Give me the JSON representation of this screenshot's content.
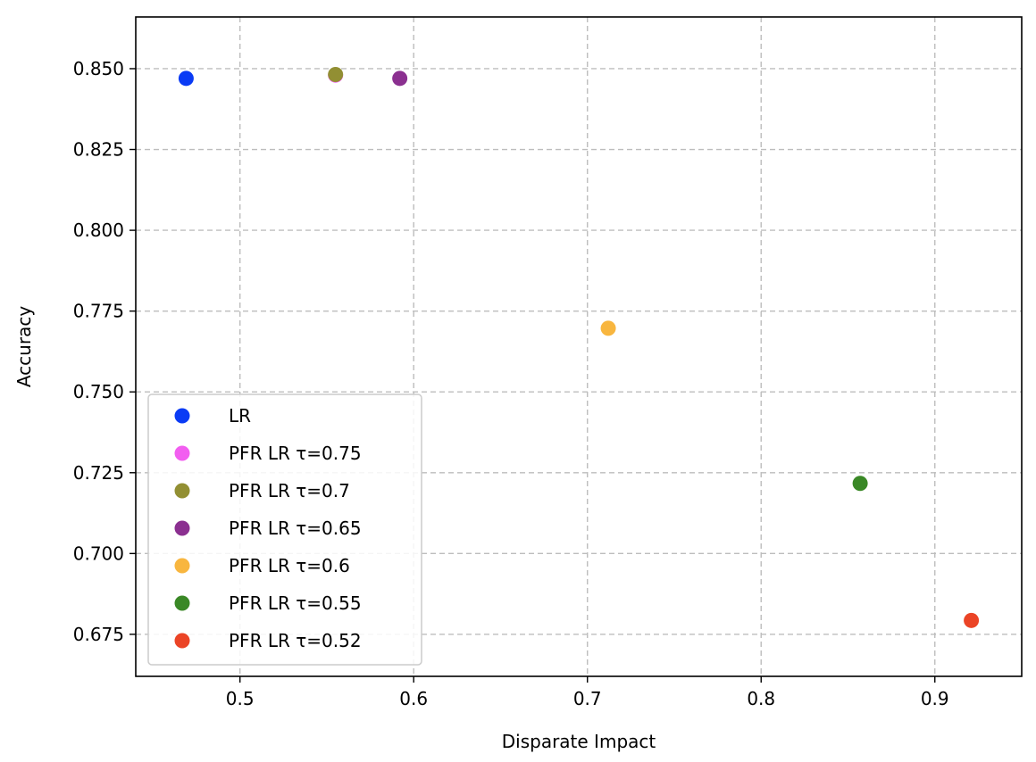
{
  "chart_data": {
    "type": "scatter",
    "xlabel": "Disparate Impact",
    "ylabel": "Accuracy",
    "xlim": [
      0.44,
      0.95
    ],
    "ylim": [
      0.662,
      0.866
    ],
    "xticks": [
      0.5,
      0.6,
      0.7,
      0.8,
      0.9
    ],
    "xtick_labels": [
      "0.5",
      "0.6",
      "0.7",
      "0.8",
      "0.9"
    ],
    "yticks": [
      0.675,
      0.7,
      0.725,
      0.75,
      0.775,
      0.8,
      0.825,
      0.85
    ],
    "ytick_labels": [
      "0.675",
      "0.700",
      "0.725",
      "0.750",
      "0.775",
      "0.800",
      "0.825",
      "0.850"
    ],
    "grid": true,
    "legend_position": "lower-left",
    "series": [
      {
        "name": "LR",
        "color": "#0a3bf5",
        "x": [
          0.469
        ],
        "y": [
          0.847
        ]
      },
      {
        "name": "PFR LR τ=0.75",
        "color": "#f25ef0",
        "x": [
          0.555
        ],
        "y": [
          0.848
        ]
      },
      {
        "name": "PFR LR τ=0.7",
        "color": "#928f33",
        "x": [
          0.555
        ],
        "y": [
          0.8482
        ]
      },
      {
        "name": "PFR LR τ=0.65",
        "color": "#8b3090",
        "x": [
          0.592
        ],
        "y": [
          0.847
        ]
      },
      {
        "name": "PFR LR τ=0.6",
        "color": "#f8b63f",
        "x": [
          0.712
        ],
        "y": [
          0.7697
        ]
      },
      {
        "name": "PFR LR τ=0.55",
        "color": "#3a8826",
        "x": [
          0.857
        ],
        "y": [
          0.7217
        ]
      },
      {
        "name": "PFR LR τ=0.52",
        "color": "#eb4426",
        "x": [
          0.921
        ],
        "y": [
          0.6793
        ]
      }
    ]
  }
}
